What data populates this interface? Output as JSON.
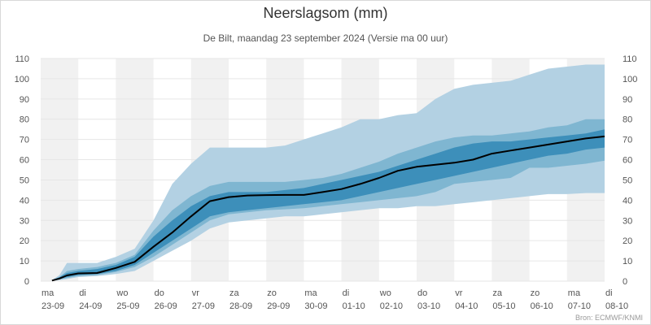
{
  "chart_data": {
    "type": "area",
    "title": "Neerslagsom (mm)",
    "subtitle": "De Bilt, maandag 23 september 2024 (Versie ma 00 uur)",
    "credit": "Bron: ECMWF/KNMI",
    "ylim": [
      0,
      110
    ],
    "yticks": [
      0,
      10,
      20,
      30,
      40,
      50,
      60,
      70,
      80,
      90,
      100,
      110
    ],
    "xlim": [
      0,
      15
    ],
    "x_tick_labels": [
      {
        "day": "ma",
        "date": "23-09"
      },
      {
        "day": "di",
        "date": "24-09"
      },
      {
        "day": "wo",
        "date": "25-09"
      },
      {
        "day": "do",
        "date": "26-09"
      },
      {
        "day": "vr",
        "date": "27-09"
      },
      {
        "day": "za",
        "date": "28-09"
      },
      {
        "day": "zo",
        "date": "29-09"
      },
      {
        "day": "ma",
        "date": "30-09"
      },
      {
        "day": "di",
        "date": "01-10"
      },
      {
        "day": "wo",
        "date": "02-10"
      },
      {
        "day": "do",
        "date": "03-10"
      },
      {
        "day": "vr",
        "date": "04-10"
      },
      {
        "day": "za",
        "date": "05-10"
      },
      {
        "day": "zo",
        "date": "06-10"
      },
      {
        "day": "ma",
        "date": "07-10"
      },
      {
        "day": "di",
        "date": "08-10"
      }
    ],
    "shaded_days": [
      0,
      2,
      4,
      6,
      8,
      10,
      12,
      14
    ],
    "colors": {
      "band_outer": "#b3d1e3",
      "band_mid": "#7fb6d1",
      "band_inner": "#3d8fba",
      "median": "#000000",
      "day_shade": "#f1f1f1",
      "grid": "#e6e6e6"
    },
    "x": [
      0.3,
      0.5,
      0.7,
      1.0,
      1.5,
      2.0,
      2.5,
      3.0,
      3.5,
      4.0,
      4.5,
      5.0,
      5.5,
      6.0,
      6.5,
      7.0,
      7.5,
      8.0,
      8.5,
      9.0,
      9.5,
      10.0,
      10.5,
      11.0,
      11.5,
      12.0,
      12.5,
      13.0,
      13.5,
      14.0,
      14.5,
      15.0
    ],
    "series": [
      {
        "band": "outer_upper",
        "values": [
          0.5,
          3,
          9,
          9,
          9,
          12,
          16,
          30,
          48,
          58,
          66,
          66,
          66,
          66,
          67,
          70,
          73,
          76,
          80,
          80,
          82,
          83,
          90,
          95,
          97,
          98,
          99,
          102,
          105,
          106,
          107,
          107
        ]
      },
      {
        "band": "mid_upper",
        "values": [
          0.5,
          2,
          5,
          6,
          7,
          9,
          13,
          25,
          35,
          42,
          47,
          49,
          49,
          49,
          49,
          50,
          51,
          53,
          56,
          59,
          63,
          66,
          69,
          71,
          72,
          72,
          73,
          74,
          76,
          77,
          80,
          80
        ]
      },
      {
        "band": "inner_upper",
        "values": [
          0.5,
          2,
          4,
          5,
          6,
          8,
          12,
          22,
          30,
          37,
          42,
          44,
          44,
          44,
          45,
          46,
          48,
          50,
          52,
          54,
          57,
          60,
          63,
          66,
          68,
          69,
          69,
          70,
          71,
          72,
          73,
          75
        ]
      },
      {
        "band": "median",
        "values": [
          0.3,
          1.3,
          2.8,
          3.8,
          4.0,
          6.5,
          9.5,
          17.0,
          24.0,
          32.0,
          39.5,
          41.5,
          42.3,
          42.5,
          42.6,
          42.6,
          44.0,
          45.5,
          48.0,
          51.0,
          54.5,
          56.5,
          57.5,
          58.5,
          60.0,
          63.0,
          64.5,
          66.0,
          67.5,
          69.0,
          70.5,
          71.5
        ]
      },
      {
        "band": "inner_lower",
        "values": [
          0.3,
          1,
          2,
          3,
          3.5,
          5,
          8,
          14,
          20,
          26,
          32,
          34,
          35,
          36,
          37,
          38,
          39,
          40,
          42,
          44,
          46,
          48,
          50,
          52,
          54,
          56,
          58,
          60,
          62,
          63,
          65,
          66
        ]
      },
      {
        "band": "mid_lower",
        "values": [
          0.2,
          0.8,
          1.5,
          2.5,
          3.0,
          4.5,
          7.0,
          12.0,
          18.0,
          24.0,
          30.0,
          33.0,
          34.0,
          35.0,
          35.5,
          36.0,
          37.0,
          38.0,
          39.0,
          40.0,
          41.0,
          42.0,
          44.0,
          48.0,
          49.0,
          50.0,
          51.0,
          56.0,
          56.0,
          57.0,
          58.0,
          59.5
        ]
      },
      {
        "band": "outer_lower",
        "values": [
          0.1,
          0.5,
          1,
          2,
          2.5,
          3.5,
          5,
          10,
          15,
          20,
          26,
          29,
          30,
          31,
          32,
          32,
          33,
          34,
          35,
          36,
          36,
          37,
          37,
          38,
          39,
          40,
          41,
          42,
          43,
          43,
          43.5,
          43.5
        ]
      }
    ]
  }
}
